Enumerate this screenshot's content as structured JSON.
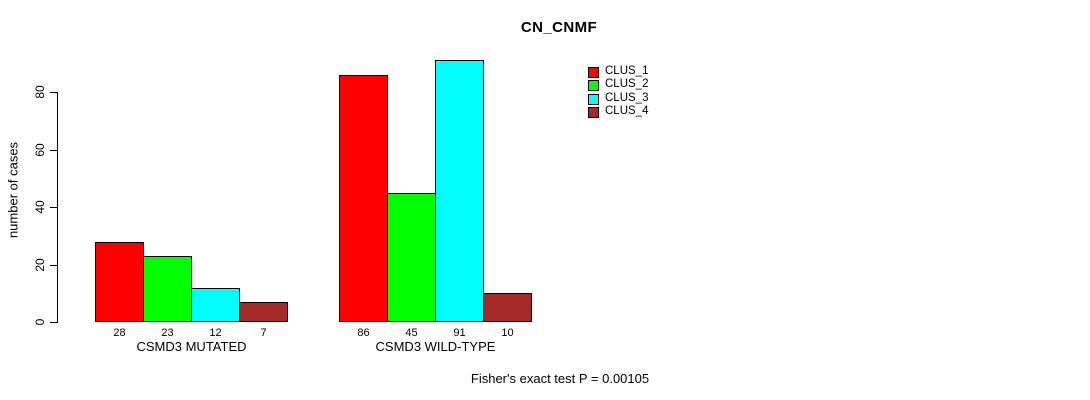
{
  "title": "CN_CNMF",
  "ylabel": "number of cases",
  "footer": "Fisher's exact test P = 0.00105",
  "chart_data": {
    "type": "bar",
    "title": "CN_CNMF",
    "xlabel": "",
    "ylabel": "number of cases",
    "categories": [
      "CSMD3 MUTATED",
      "CSMD3 WILD-TYPE"
    ],
    "series": [
      {
        "name": "CLUS_1",
        "color": "#FF0000",
        "values": [
          28,
          86
        ]
      },
      {
        "name": "CLUS_2",
        "color": "#00FF00",
        "values": [
          23,
          45
        ]
      },
      {
        "name": "CLUS_3",
        "color": "#00FFFF",
        "values": [
          12,
          91
        ]
      },
      {
        "name": "CLUS_4",
        "color": "#A52A2A",
        "values": [
          7,
          10
        ]
      }
    ],
    "yticks": [
      0,
      20,
      40,
      60,
      80
    ],
    "ylim": [
      0,
      92
    ],
    "grid": false,
    "bar_outline_color": "#000000",
    "show_bar_value_labels": true,
    "legend_position": "top-right-inside",
    "legend_entries": [
      "CLUS_1",
      "CLUS_2",
      "CLUS_3",
      "CLUS_4"
    ],
    "annotation": "Fisher's exact test P = 0.00105"
  }
}
